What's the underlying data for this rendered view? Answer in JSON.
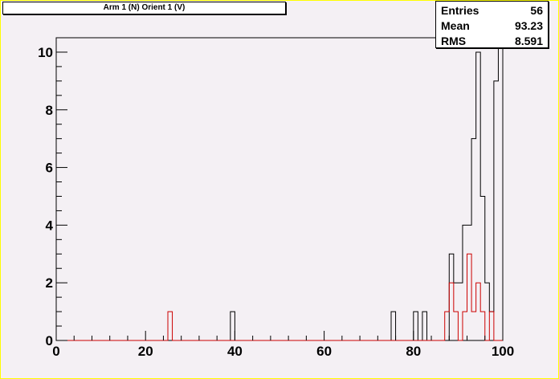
{
  "title": "Arm 1 (N) Orient 1 (V)",
  "stats": [
    {
      "label": "Entries",
      "value": "56"
    },
    {
      "label": "Mean",
      "value": "93.23"
    },
    {
      "label": "RMS",
      "value": "8.591"
    }
  ],
  "colors": {
    "frame": "#ffff00",
    "pad": "#f4f0f4",
    "black_series": "#000000",
    "red_series": "#cc0000"
  },
  "chart_data": {
    "type": "histogram",
    "bin_width": 1,
    "xlim": [
      0,
      100
    ],
    "ylim": [
      0,
      10.5
    ],
    "xticks": [
      0,
      20,
      40,
      60,
      80,
      100
    ],
    "yticks": [
      0,
      2,
      4,
      6,
      8,
      10
    ],
    "series": [
      {
        "color": "black",
        "bins": [
          {
            "x": 39,
            "y": 1
          },
          {
            "x": 75,
            "y": 1
          },
          {
            "x": 80,
            "y": 1
          },
          {
            "x": 82,
            "y": 1
          },
          {
            "x": 88,
            "y": 3
          },
          {
            "x": 89,
            "y": 2
          },
          {
            "x": 90,
            "y": 2
          },
          {
            "x": 91,
            "y": 4
          },
          {
            "x": 92,
            "y": 4
          },
          {
            "x": 93,
            "y": 7
          },
          {
            "x": 94,
            "y": 10
          },
          {
            "x": 95,
            "y": 5
          },
          {
            "x": 96,
            "y": 2
          },
          {
            "x": 97,
            "y": 1
          },
          {
            "x": 98,
            "y": 9
          },
          {
            "x": 99,
            "y": 10.5
          }
        ]
      },
      {
        "color": "red",
        "bins": [
          {
            "x": 25,
            "y": 1
          },
          {
            "x": 87,
            "y": 1
          },
          {
            "x": 88,
            "y": 2
          },
          {
            "x": 89,
            "y": 1
          },
          {
            "x": 91,
            "y": 1
          },
          {
            "x": 92,
            "y": 3
          },
          {
            "x": 93,
            "y": 1
          },
          {
            "x": 94,
            "y": 2
          },
          {
            "x": 95,
            "y": 1
          },
          {
            "x": 97,
            "y": 1
          }
        ]
      }
    ]
  }
}
